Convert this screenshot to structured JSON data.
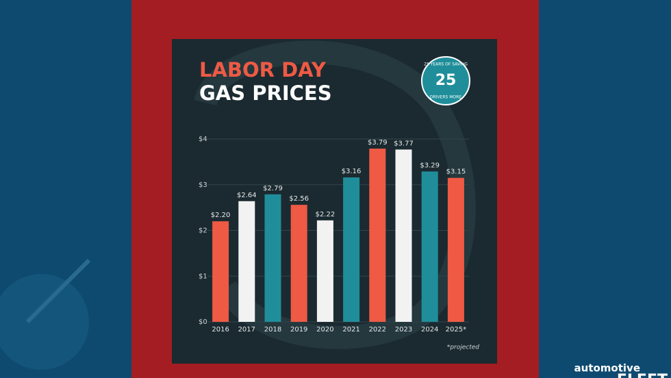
{
  "chart_data": {
    "type": "bar",
    "title": "LABOR DAY",
    "subtitle": "GAS PRICES",
    "categories": [
      "2016",
      "2017",
      "2018",
      "2019",
      "2020",
      "2021",
      "2022",
      "2023",
      "2024",
      "2025*"
    ],
    "values": [
      2.2,
      2.64,
      2.79,
      2.56,
      2.22,
      3.16,
      3.79,
      3.77,
      3.29,
      3.15
    ],
    "value_labels": [
      "$2.20",
      "$2.64",
      "$2.79",
      "$2.56",
      "$2.22",
      "$3.16",
      "$3.79",
      "$3.77",
      "$3.29",
      "$3.15"
    ],
    "colors": [
      "#ee5a44",
      "#f2f2f2",
      "#1f8e9a",
      "#ee5a44",
      "#f2f2f2",
      "#1f8e9a",
      "#ee5a44",
      "#f2f2f2",
      "#1f8e9a",
      "#ee5a44"
    ],
    "ylim": [
      0,
      4
    ],
    "yticks": [
      {
        "value": 0,
        "label": "$0"
      },
      {
        "value": 1,
        "label": "$1"
      },
      {
        "value": 2,
        "label": "$2"
      },
      {
        "value": 3,
        "label": "$3"
      },
      {
        "value": 4,
        "label": "$4"
      }
    ],
    "grid": true,
    "note": "*projected"
  },
  "badge": {
    "center": "25",
    "top": "25 YEARS OF SAVING",
    "bottom": "DRIVERS MORE"
  },
  "logo": {
    "top": "automotive",
    "bottom": "FLEET"
  }
}
